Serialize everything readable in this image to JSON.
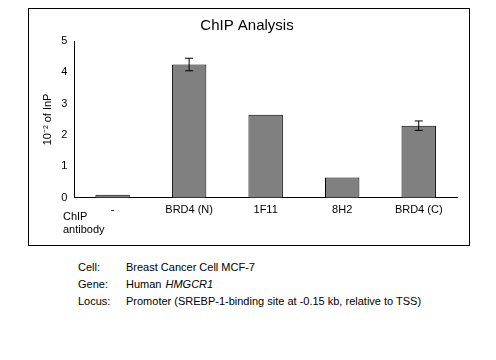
{
  "chart_data": {
    "type": "bar",
    "title": "ChIP Analysis",
    "ylabel": "10⁻² of InP",
    "xlabel": "ChIP antibody",
    "categories": [
      "-",
      "BRD4 (N)",
      "1F11",
      "8H2",
      "BRD4 (C)"
    ],
    "values": [
      0.1,
      4.25,
      2.65,
      0.65,
      2.3
    ],
    "errors": [
      null,
      0.2,
      null,
      null,
      0.15
    ],
    "color": "#808080",
    "ylim": [
      0,
      5
    ],
    "yticks": [
      0,
      1,
      2,
      3,
      4,
      5
    ],
    "grid": false
  },
  "notes": [
    {
      "label": "Cell:",
      "text": "Breast Cancer Cell MCF-7"
    },
    {
      "label": "Gene:",
      "text": "Human",
      "italic_text": "HMGCR1"
    },
    {
      "label": "Locus:",
      "text": "Promoter (SREBP-1-binding site at -0.15 kb, relative to TSS)"
    }
  ]
}
